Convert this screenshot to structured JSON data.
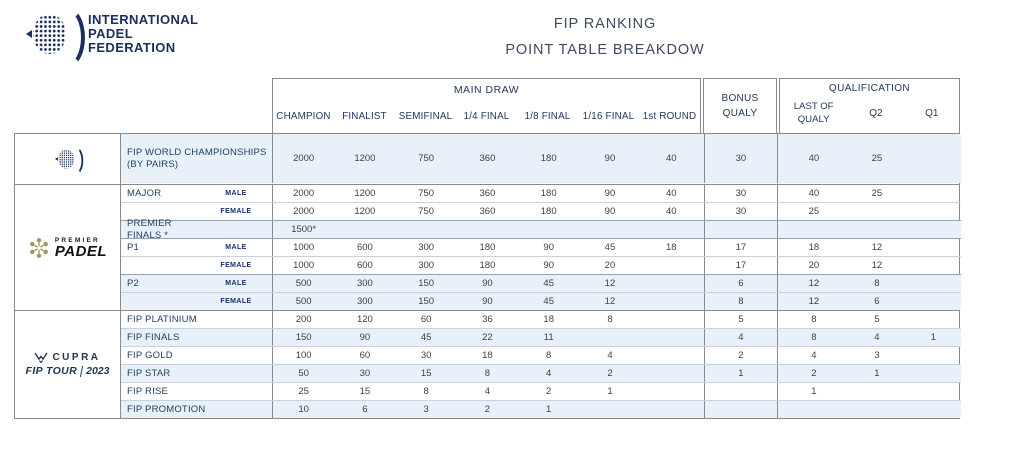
{
  "brand": {
    "name_lines": [
      "INTERNATIONAL",
      "PADEL",
      "FEDERATION"
    ]
  },
  "title": {
    "line1": "FIP RANKING",
    "line2": "POINT TABLE BREAKDOW"
  },
  "colors": {
    "accent_navy": "#1b2f5e",
    "row_shade": "#e8f1f9",
    "border_gray": "#8a8a8a",
    "premier_gold": "#a8905c"
  },
  "table": {
    "header": {
      "main_draw": "MAIN DRAW",
      "main_cols": [
        "CHAMPION",
        "FINALIST",
        "SEMIFINAL",
        "1/4 FINAL",
        "1/8 FINAL",
        "1/16 FINAL",
        "1st ROUND"
      ],
      "bonus_line1": "BONUS",
      "bonus_line2": "QUALY",
      "qualification": "QUALIFICATION",
      "last_of_qualy_line1": "LAST OF",
      "last_of_qualy_line2": "QUALY",
      "q2": "Q2",
      "q1": "Q1"
    },
    "logos": {
      "fip_icon": "fip-racket-icon",
      "premier_padel": {
        "top": "PREMIER",
        "main": "PADEL"
      },
      "cupra": {
        "name": "CUPRA",
        "tour": "FIP TOUR",
        "year": "2023"
      }
    },
    "groups": [
      {
        "brand": "fip",
        "has_sub": false,
        "rows": [
          {
            "label": "FIP WORLD CHAMPIONSHIPS (BY PAIRS)",
            "sub": "",
            "shade": true,
            "tall": true,
            "values": [
              "2000",
              "1200",
              "750",
              "360",
              "180",
              "90",
              "40",
              "30",
              "40",
              "25",
              ""
            ]
          }
        ]
      },
      {
        "brand": "premier-padel",
        "has_sub": true,
        "rows": [
          {
            "label": "MAJOR",
            "sub": "MALE",
            "shade": false,
            "values": [
              "2000",
              "1200",
              "750",
              "360",
              "180",
              "90",
              "40",
              "30",
              "40",
              "25",
              ""
            ]
          },
          {
            "label": "",
            "sub": "FEMALE",
            "shade": false,
            "values": [
              "2000",
              "1200",
              "750",
              "360",
              "180",
              "90",
              "40",
              "30",
              "25",
              "",
              ""
            ]
          },
          {
            "label": "PREMIER FINALS *",
            "sub": "",
            "shade": true,
            "sep": true,
            "values": [
              "1500*",
              "",
              "",
              "",
              "",
              "",
              "",
              "",
              "",
              "",
              ""
            ]
          },
          {
            "label": "P1",
            "sub": "MALE",
            "shade": false,
            "sep": true,
            "values": [
              "1000",
              "600",
              "300",
              "180",
              "90",
              "45",
              "18",
              "17",
              "18",
              "12",
              ""
            ]
          },
          {
            "label": "",
            "sub": "FEMALE",
            "shade": false,
            "values": [
              "1000",
              "600",
              "300",
              "180",
              "90",
              "20",
              "",
              "17",
              "20",
              "12",
              ""
            ]
          },
          {
            "label": "P2",
            "sub": "MALE",
            "shade": true,
            "sep": true,
            "values": [
              "500",
              "300",
              "150",
              "90",
              "45",
              "12",
              "",
              "6",
              "12",
              "8",
              ""
            ]
          },
          {
            "label": "",
            "sub": "FEMALE",
            "shade": true,
            "values": [
              "500",
              "300",
              "150",
              "90",
              "45",
              "12",
              "",
              "8",
              "12",
              "6",
              ""
            ]
          }
        ]
      },
      {
        "brand": "cupra-fip-tour",
        "has_sub": false,
        "rows": [
          {
            "label": "FIP PLATINIUM",
            "sub": "",
            "shade": false,
            "values": [
              "200",
              "120",
              "60",
              "36",
              "18",
              "8",
              "",
              "5",
              "8",
              "5",
              ""
            ]
          },
          {
            "label": "FIP FINALS",
            "sub": "",
            "shade": true,
            "values": [
              "150",
              "90",
              "45",
              "22",
              "11",
              "",
              "",
              "4",
              "8",
              "4",
              "1"
            ]
          },
          {
            "label": "FIP GOLD",
            "sub": "",
            "shade": false,
            "values": [
              "100",
              "60",
              "30",
              "18",
              "8",
              "4",
              "",
              "2",
              "4",
              "3",
              ""
            ]
          },
          {
            "label": "FIP STAR",
            "sub": "",
            "shade": true,
            "values": [
              "50",
              "30",
              "15",
              "8",
              "4",
              "2",
              "",
              "1",
              "2",
              "1",
              ""
            ]
          },
          {
            "label": "FIP RISE",
            "sub": "",
            "shade": false,
            "values": [
              "25",
              "15",
              "8",
              "4",
              "2",
              "1",
              "",
              "",
              "1",
              "",
              ""
            ]
          },
          {
            "label": "FIP PROMOTION",
            "sub": "",
            "shade": true,
            "values": [
              "10",
              "6",
              "3",
              "2",
              "1",
              "",
              "",
              "",
              "",
              "",
              ""
            ]
          }
        ]
      }
    ],
    "col_keys": [
      "champion",
      "finalist",
      "semifinal",
      "quarter-final",
      "eighth-final",
      "sixteenth-final",
      "first-round",
      "bonus-qualy",
      "last-of-qualy",
      "q2",
      "q1"
    ]
  }
}
